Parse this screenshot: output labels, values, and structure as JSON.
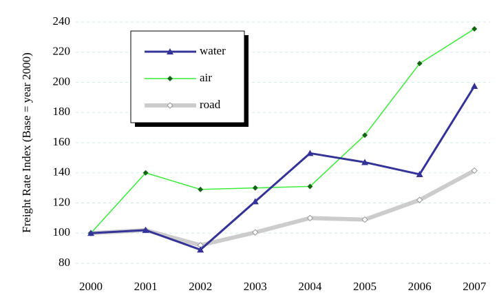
{
  "chart_data": {
    "type": "line",
    "y_label": "Freight Rate Index (Base = year 2000)",
    "categories": [
      "2000",
      "2001",
      "2002",
      "2003",
      "2004",
      "2005",
      "2006",
      "2007"
    ],
    "series": [
      {
        "name": "water",
        "color": "#333399",
        "marker": "triangle",
        "values": [
          100,
          102,
          89,
          121,
          153,
          147,
          139,
          197.5
        ]
      },
      {
        "name": "air",
        "color": "#33ee33",
        "marker": "diamond",
        "values": [
          100,
          140,
          129,
          130,
          131,
          165,
          212.5,
          235.5
        ]
      },
      {
        "name": "road",
        "color": "#cccccc",
        "marker": "open-diamond",
        "values": [
          100,
          102,
          92,
          100.5,
          110,
          109,
          122,
          141.5
        ]
      }
    ],
    "ylim": [
      80,
      240
    ],
    "yticks": [
      80,
      100,
      120,
      140,
      160,
      180,
      200,
      220,
      240
    ],
    "grid": true,
    "legend": "upper left"
  }
}
